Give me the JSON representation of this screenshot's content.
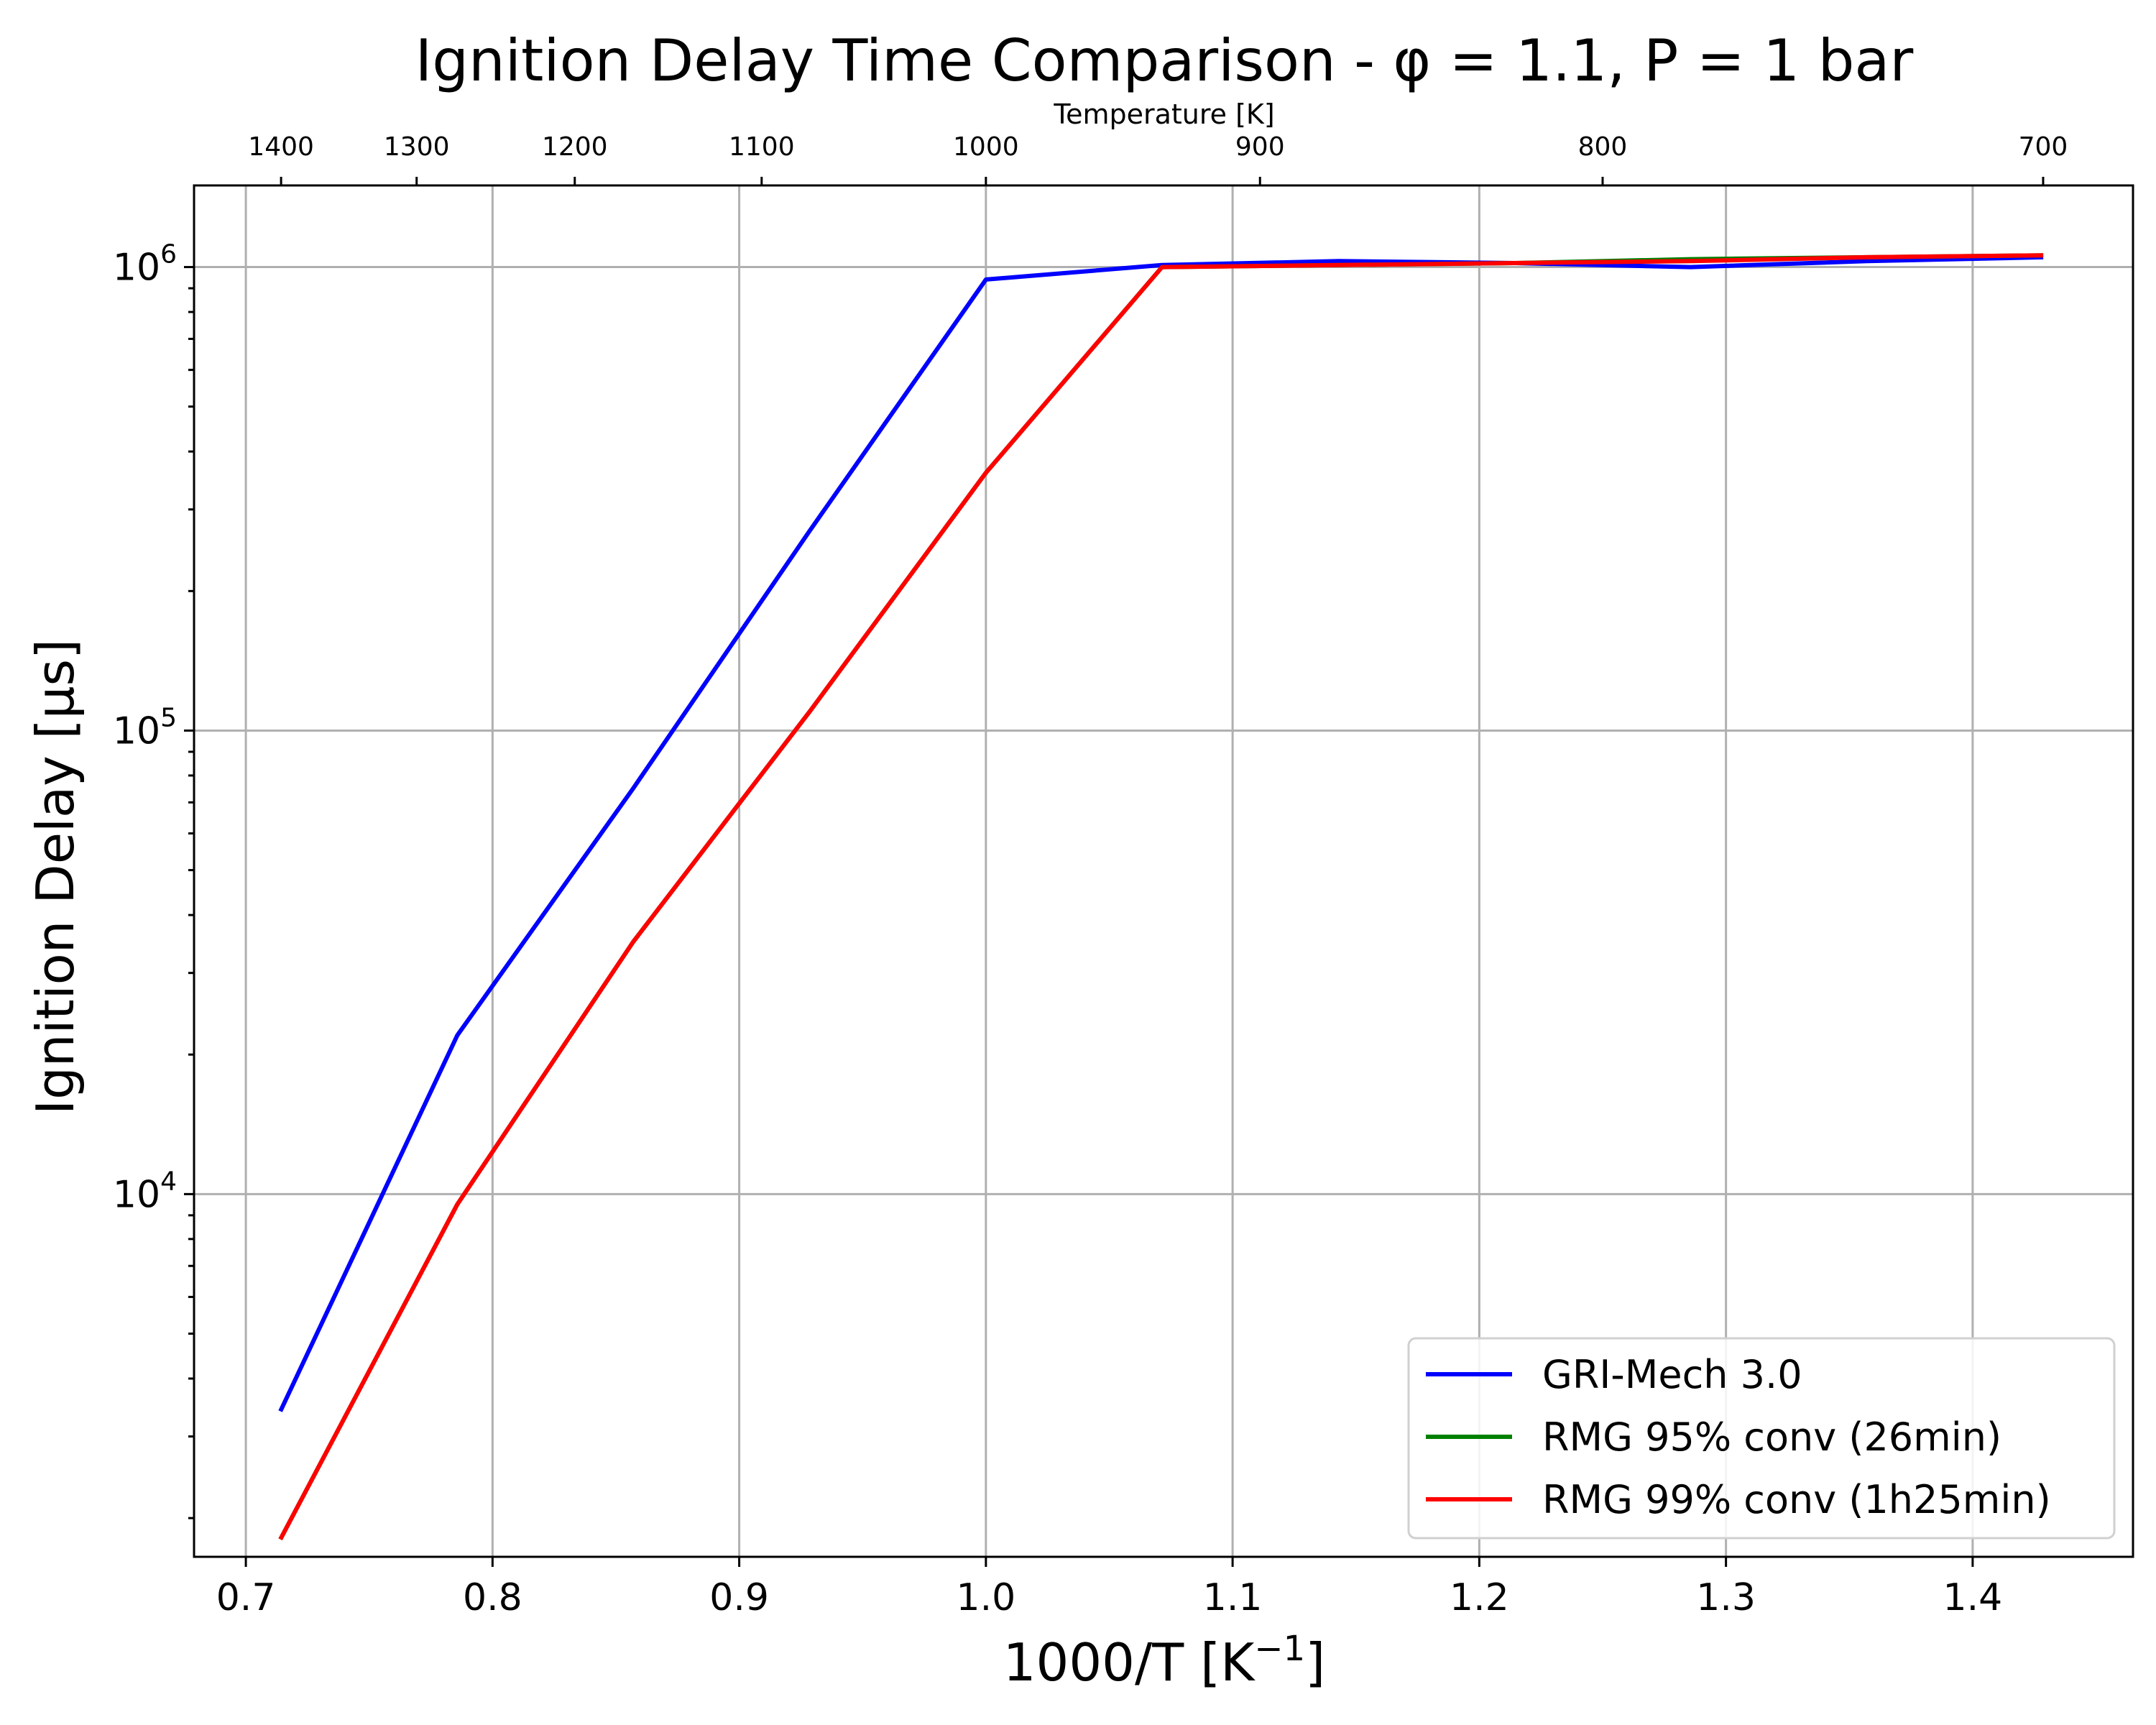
{
  "chart_data": {
    "type": "line",
    "title": "Ignition Delay Time Comparison - φ = 1.1, P = 1 bar",
    "xlabel": "1000/T [K",
    "xlabel_sup": "−1",
    "xlabel_suffix": "]",
    "ylabel": "Ignition Delay [μs]",
    "top_axis_label": "Temperature [K]",
    "xlim": [
      0.679,
      1.465
    ],
    "ylim": [
      1650,
      1500000
    ],
    "yscale": "log",
    "grid": true,
    "legend_position": "lower-right",
    "x_ticks": [
      0.7,
      0.8,
      0.9,
      1.0,
      1.1,
      1.2,
      1.3,
      1.4
    ],
    "x_tick_labels": [
      "0.7",
      "0.8",
      "0.9",
      "1.0",
      "1.1",
      "1.2",
      "1.3",
      "1.4"
    ],
    "y_ticks": [
      {
        "value": 10000,
        "base": "10",
        "exp": "4"
      },
      {
        "value": 100000,
        "base": "10",
        "exp": "5"
      },
      {
        "value": 1000000,
        "base": "10",
        "exp": "6"
      }
    ],
    "top_ticks": [
      1400,
      1300,
      1200,
      1100,
      1000,
      900,
      800,
      700
    ],
    "top_tick_labels": [
      "1400",
      "1300",
      "1200",
      "1100",
      "1000",
      "900",
      "800",
      "700"
    ],
    "series": [
      {
        "name": "GRI-Mech 3.0",
        "color": "#0000ff",
        "x": [
          0.714,
          0.7857,
          0.857,
          0.9286,
          1.0,
          1.0714,
          1.1429,
          1.2143,
          1.2857,
          1.3571,
          1.4286
        ],
        "y": [
          3400,
          22000,
          75000,
          270000,
          940000,
          1010000,
          1030000,
          1020000,
          1000000,
          1030000,
          1050000
        ]
      },
      {
        "name": "RMG 95% conv (26min)",
        "color": "#008000",
        "x": [
          0.714,
          0.7857,
          0.857,
          0.9286,
          1.0,
          1.0714,
          1.1429,
          1.2143,
          1.2857,
          1.3571,
          1.4286
        ],
        "y": [
          1800,
          9500,
          35000,
          110000,
          360000,
          1000000,
          1010000,
          1020000,
          1040000,
          1050000,
          1060000
        ]
      },
      {
        "name": "RMG 99% conv (1h25min)",
        "color": "#ff0000",
        "x": [
          0.714,
          0.7857,
          0.857,
          0.9286,
          1.0,
          1.0714,
          1.1429,
          1.2143,
          1.2857,
          1.3571,
          1.4286
        ],
        "y": [
          1800,
          9500,
          35000,
          110000,
          360000,
          1000000,
          1010000,
          1020000,
          1030000,
          1050000,
          1060000
        ]
      }
    ]
  }
}
